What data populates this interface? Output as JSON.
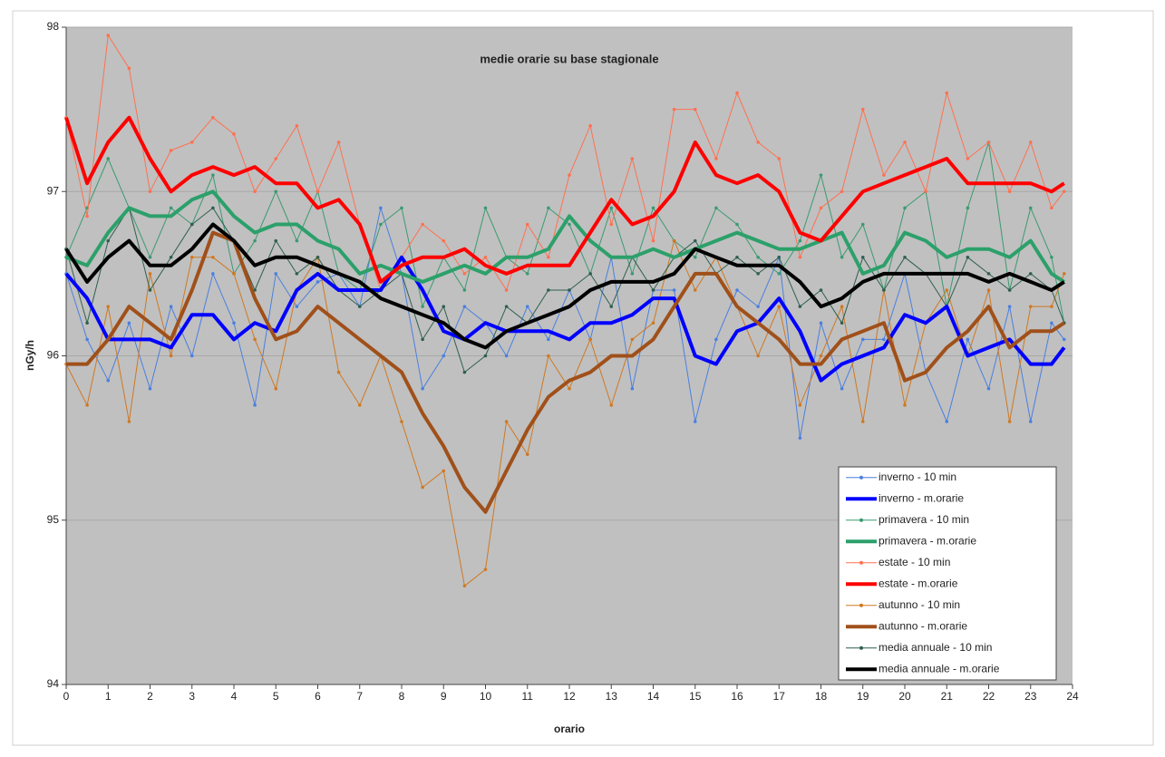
{
  "chart_data": {
    "type": "line",
    "title": "medie orarie su base stagionale",
    "x_label": "orario",
    "y_label": "nGy/h",
    "xlim": [
      0,
      24
    ],
    "xticks": [
      0,
      1,
      2,
      3,
      4,
      5,
      6,
      7,
      8,
      9,
      10,
      11,
      12,
      13,
      14,
      15,
      16,
      17,
      18,
      19,
      20,
      21,
      22,
      23,
      24
    ],
    "ylim": [
      94,
      98
    ],
    "yticks": [
      94,
      95,
      96,
      97,
      98
    ],
    "grid": true,
    "legend": "lower right",
    "x": [
      0,
      0.5,
      1,
      1.5,
      2,
      2.5,
      3,
      3.5,
      4,
      4.5,
      5,
      5.5,
      6,
      6.5,
      7,
      7.5,
      8,
      8.5,
      9,
      9.5,
      10,
      10.5,
      11,
      11.5,
      12,
      12.5,
      13,
      13.5,
      14,
      14.5,
      15,
      15.5,
      16,
      16.5,
      17,
      17.5,
      18,
      18.5,
      19,
      19.5,
      20,
      20.5,
      21,
      21.5,
      22,
      22.5,
      23,
      23.5,
      23.8
    ],
    "series": [
      {
        "name": "inverno - 10 min",
        "color": "#4a7fe0",
        "width": 1,
        "marker": true,
        "values": [
          96.5,
          96.1,
          95.85,
          96.2,
          95.8,
          96.3,
          96.0,
          96.5,
          96.2,
          95.7,
          96.5,
          96.3,
          96.45,
          96.5,
          96.3,
          96.9,
          96.5,
          95.8,
          96.0,
          96.3,
          96.2,
          96.0,
          96.3,
          96.1,
          96.4,
          96.1,
          96.6,
          95.8,
          96.4,
          96.4,
          95.6,
          96.1,
          96.4,
          96.3,
          96.6,
          95.5,
          96.2,
          95.8,
          96.1,
          96.1,
          96.5,
          95.9,
          95.6,
          96.1,
          95.8,
          96.3,
          95.6,
          96.2,
          96.1
        ]
      },
      {
        "name": "inverno - m.orarie",
        "color": "#0000ff",
        "width": 4,
        "marker": false,
        "values": [
          96.5,
          96.35,
          96.1,
          96.1,
          96.1,
          96.05,
          96.25,
          96.25,
          96.1,
          96.2,
          96.15,
          96.4,
          96.5,
          96.4,
          96.4,
          96.4,
          96.6,
          96.4,
          96.15,
          96.1,
          96.2,
          96.15,
          96.15,
          96.15,
          96.1,
          96.2,
          96.2,
          96.25,
          96.35,
          96.35,
          96.0,
          95.95,
          96.15,
          96.2,
          96.35,
          96.15,
          95.85,
          95.95,
          96.0,
          96.05,
          96.25,
          96.2,
          96.3,
          96.0,
          96.05,
          96.1,
          95.95,
          95.95,
          96.05
        ]
      },
      {
        "name": "primavera - 10 min",
        "color": "#3a9a70",
        "width": 1,
        "marker": true,
        "values": [
          96.6,
          96.9,
          97.2,
          96.9,
          96.6,
          96.9,
          96.8,
          97.1,
          96.5,
          96.7,
          97.0,
          96.7,
          97.0,
          96.5,
          96.4,
          96.8,
          96.9,
          96.3,
          96.6,
          96.4,
          96.9,
          96.6,
          96.5,
          96.9,
          96.8,
          96.5,
          96.9,
          96.5,
          96.9,
          96.7,
          96.6,
          96.9,
          96.8,
          96.6,
          96.5,
          96.7,
          97.1,
          96.6,
          96.8,
          96.4,
          96.9,
          97.0,
          96.3,
          96.9,
          97.3,
          96.4,
          96.9,
          96.6,
          96.2
        ]
      },
      {
        "name": "primavera - m.orarie",
        "color": "#2ca06a",
        "width": 4,
        "marker": false,
        "values": [
          96.6,
          96.55,
          96.75,
          96.9,
          96.85,
          96.85,
          96.95,
          97.0,
          96.85,
          96.75,
          96.8,
          96.8,
          96.7,
          96.65,
          96.5,
          96.55,
          96.5,
          96.45,
          96.5,
          96.55,
          96.5,
          96.6,
          96.6,
          96.65,
          96.85,
          96.7,
          96.6,
          96.6,
          96.65,
          96.6,
          96.65,
          96.7,
          96.75,
          96.7,
          96.65,
          96.65,
          96.7,
          96.75,
          96.5,
          96.55,
          96.75,
          96.7,
          96.6,
          96.65,
          96.65,
          96.6,
          96.7,
          96.5,
          96.45
        ]
      },
      {
        "name": "estate - 10 min",
        "color": "#ff7050",
        "width": 1,
        "marker": true,
        "values": [
          97.45,
          96.85,
          97.95,
          97.75,
          97.0,
          97.25,
          97.3,
          97.45,
          97.35,
          97.0,
          97.2,
          97.4,
          97.0,
          97.3,
          96.8,
          96.4,
          96.6,
          96.8,
          96.7,
          96.5,
          96.6,
          96.4,
          96.8,
          96.6,
          97.1,
          97.4,
          96.8,
          97.2,
          96.7,
          97.5,
          97.5,
          97.2,
          97.6,
          97.3,
          97.2,
          96.6,
          96.9,
          97.0,
          97.5,
          97.1,
          97.3,
          97.0,
          97.6,
          97.2,
          97.3,
          97.0,
          97.3,
          96.9,
          97.0
        ]
      },
      {
        "name": "estate - m.orarie",
        "color": "#ff0000",
        "width": 4,
        "marker": false,
        "values": [
          97.45,
          97.05,
          97.3,
          97.45,
          97.2,
          97.0,
          97.1,
          97.15,
          97.1,
          97.15,
          97.05,
          97.05,
          96.9,
          96.95,
          96.8,
          96.45,
          96.55,
          96.6,
          96.6,
          96.65,
          96.55,
          96.5,
          96.55,
          96.55,
          96.55,
          96.75,
          96.95,
          96.8,
          96.85,
          97.0,
          97.3,
          97.1,
          97.05,
          97.1,
          97.0,
          96.75,
          96.7,
          96.85,
          97.0,
          97.05,
          97.1,
          97.15,
          97.2,
          97.05,
          97.05,
          97.05,
          97.05,
          97.0,
          97.05
        ]
      },
      {
        "name": "autunno - 10 min",
        "color": "#d07820",
        "width": 1,
        "marker": true,
        "values": [
          95.95,
          95.7,
          96.3,
          95.6,
          96.5,
          96.0,
          96.6,
          96.6,
          96.5,
          96.1,
          95.8,
          96.4,
          96.6,
          95.9,
          95.7,
          96.0,
          95.6,
          95.2,
          95.3,
          94.6,
          94.7,
          95.6,
          95.4,
          96.0,
          95.8,
          96.1,
          95.7,
          96.1,
          96.2,
          96.7,
          96.4,
          96.6,
          96.3,
          96.0,
          96.3,
          95.7,
          96.0,
          96.3,
          95.6,
          96.4,
          95.7,
          96.2,
          96.4,
          96.0,
          96.4,
          95.6,
          96.3,
          96.3,
          96.5
        ]
      },
      {
        "name": "autunno - m.orarie",
        "color": "#a0501a",
        "width": 4,
        "marker": false,
        "values": [
          95.95,
          95.95,
          96.1,
          96.3,
          96.2,
          96.1,
          96.4,
          96.75,
          96.7,
          96.35,
          96.1,
          96.15,
          96.3,
          96.2,
          96.1,
          96.0,
          95.9,
          95.65,
          95.45,
          95.2,
          95.05,
          95.3,
          95.55,
          95.75,
          95.85,
          95.9,
          96.0,
          96.0,
          96.1,
          96.3,
          96.5,
          96.5,
          96.3,
          96.2,
          96.1,
          95.95,
          95.95,
          96.1,
          96.15,
          96.2,
          95.85,
          95.9,
          96.05,
          96.15,
          96.3,
          96.05,
          96.15,
          96.15,
          96.2
        ]
      },
      {
        "name": "media annuale - 10 min",
        "color": "#2f5f4f",
        "width": 1,
        "marker": true,
        "values": [
          96.65,
          96.2,
          96.7,
          96.9,
          96.4,
          96.6,
          96.8,
          96.9,
          96.7,
          96.4,
          96.7,
          96.5,
          96.6,
          96.4,
          96.3,
          96.4,
          96.5,
          96.1,
          96.3,
          95.9,
          96.0,
          96.3,
          96.2,
          96.4,
          96.4,
          96.5,
          96.3,
          96.6,
          96.4,
          96.6,
          96.7,
          96.5,
          96.6,
          96.5,
          96.6,
          96.3,
          96.4,
          96.2,
          96.6,
          96.4,
          96.6,
          96.5,
          96.3,
          96.6,
          96.5,
          96.4,
          96.5,
          96.4,
          96.2
        ]
      },
      {
        "name": "media annuale - m.orarie",
        "color": "#000000",
        "width": 4,
        "marker": false,
        "values": [
          96.65,
          96.45,
          96.6,
          96.7,
          96.55,
          96.55,
          96.65,
          96.8,
          96.7,
          96.55,
          96.6,
          96.6,
          96.55,
          96.5,
          96.45,
          96.35,
          96.3,
          96.25,
          96.2,
          96.1,
          96.05,
          96.15,
          96.2,
          96.25,
          96.3,
          96.4,
          96.45,
          96.45,
          96.45,
          96.5,
          96.65,
          96.6,
          96.55,
          96.55,
          96.55,
          96.45,
          96.3,
          96.35,
          96.45,
          96.5,
          96.5,
          96.5,
          96.5,
          96.5,
          96.45,
          96.5,
          96.45,
          96.4,
          96.45
        ]
      }
    ]
  }
}
